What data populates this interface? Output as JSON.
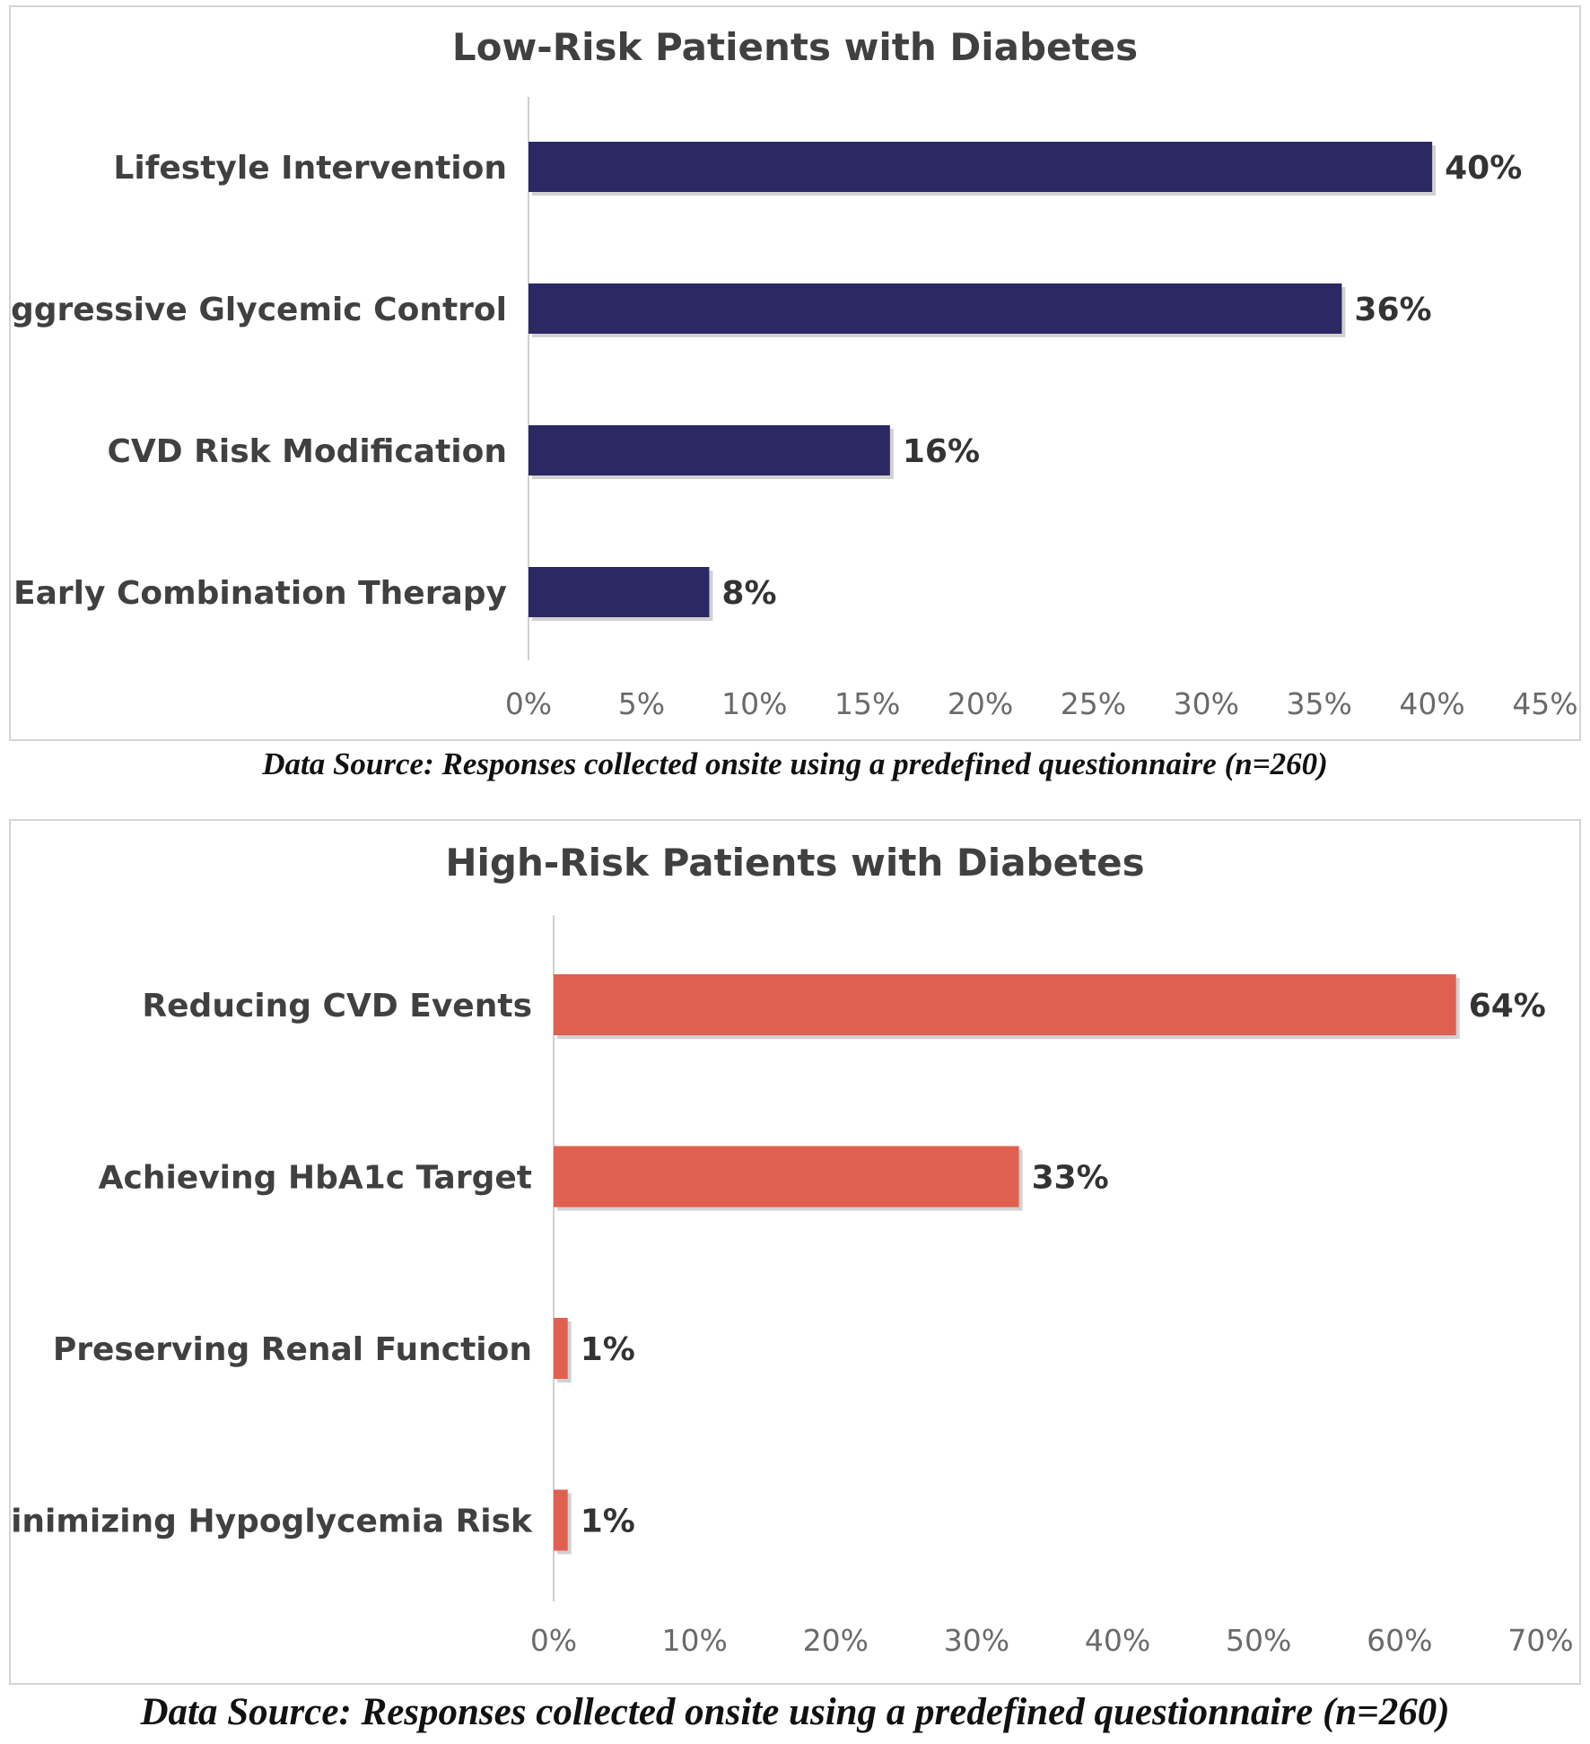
{
  "chart_data": [
    {
      "type": "bar",
      "orientation": "horizontal",
      "title": "Low-Risk Patients with Diabetes",
      "categories": [
        "Lifestyle Intervention",
        "Aggressive Glycemic Control",
        "CVD Risk Modification",
        "Early Combination Therapy"
      ],
      "values": [
        40,
        36,
        16,
        8
      ],
      "value_labels": [
        "40%",
        "36%",
        "16%",
        "8%"
      ],
      "xlim": [
        0,
        45
      ],
      "xticks": [
        "0%",
        "5%",
        "10%",
        "15%",
        "20%",
        "25%",
        "30%",
        "35%",
        "40%",
        "45%"
      ],
      "grid": false,
      "color": "#2b2864",
      "source": "Data Source: Responses collected onsite using a predefined questionnaire (n=260)"
    },
    {
      "type": "bar",
      "orientation": "horizontal",
      "title": "High-Risk Patients with Diabetes",
      "categories": [
        "Reducing CVD Events",
        "Achieving HbA1c Target",
        "Preserving Renal Function",
        "Minimizing Hypoglycemia Risk"
      ],
      "values": [
        64,
        33,
        1,
        1
      ],
      "value_labels": [
        "64%",
        "33%",
        "1%",
        "1%"
      ],
      "xlim": [
        0,
        70
      ],
      "xticks": [
        "0%",
        "10%",
        "20%",
        "30%",
        "40%",
        "50%",
        "60%",
        "70%"
      ],
      "grid": false,
      "color": "#e06050",
      "source": "Data Source: Responses collected onsite using a predefined questionnaire (n=260)"
    }
  ]
}
